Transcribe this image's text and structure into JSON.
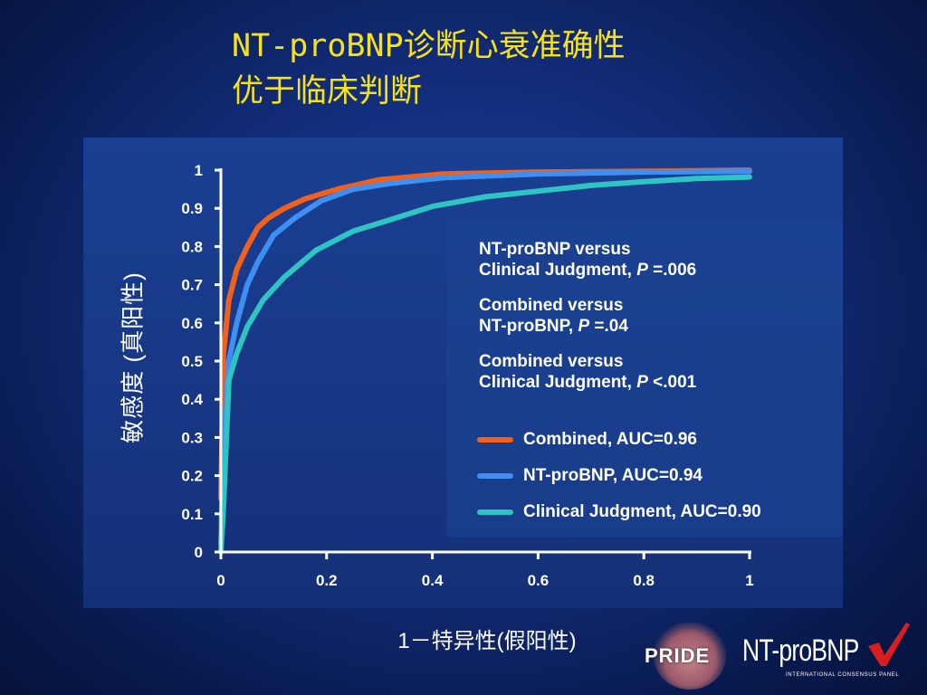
{
  "title": {
    "line1": "NT-proBNP诊断心衰准确性",
    "line2": "优于临床判断"
  },
  "annotations": [
    {
      "line1": "NT-proBNP versus",
      "line2_pre": "Clinical Judgment, ",
      "p": "P",
      "line2_post": " =.006"
    },
    {
      "line1": "Combined versus",
      "line2_pre": "NT-proBNP, ",
      "p": "P",
      "line2_post": " =.04"
    },
    {
      "line1": "Combined versus",
      "line2_pre": "Clinical Judgment, ",
      "p": "P",
      "line2_post": " <.001"
    }
  ],
  "logos": {
    "pride": "PRIDE",
    "ntprobnp": "NT-proBNP",
    "subtitle": "INTERNATIONAL CONSENSUS PANEL"
  },
  "colors": {
    "title": "#f5e11c",
    "combined": "#f2601c",
    "ntprobnp": "#3d8ff2",
    "clinical": "#2ec4c4",
    "check": "#d81e1e"
  },
  "chart_data": {
    "type": "line",
    "title": "",
    "xlabel": "1－特异性(假阳性)",
    "ylabel": "敏感度 (真阳性)",
    "xlim": [
      0,
      1
    ],
    "ylim": [
      0,
      1
    ],
    "x_ticks": [
      "0",
      "0.2",
      "0.4",
      "0.6",
      "0.8",
      "1"
    ],
    "y_ticks": [
      "0",
      "0.1",
      "0.2",
      "0.3",
      "0.4",
      "0.5",
      "0.6",
      "0.7",
      "0.8",
      "0.9",
      "1"
    ],
    "grid": false,
    "legend_position": "right",
    "series": [
      {
        "name": "Combined, AUC=0.96",
        "color": "#f2601c",
        "points": [
          [
            0,
            0.14
          ],
          [
            0.005,
            0.52
          ],
          [
            0.015,
            0.66
          ],
          [
            0.03,
            0.74
          ],
          [
            0.05,
            0.8
          ],
          [
            0.07,
            0.85
          ],
          [
            0.09,
            0.875
          ],
          [
            0.12,
            0.9
          ],
          [
            0.16,
            0.925
          ],
          [
            0.22,
            0.95
          ],
          [
            0.3,
            0.975
          ],
          [
            0.42,
            0.99
          ],
          [
            0.6,
            0.995
          ],
          [
            0.8,
            0.997
          ],
          [
            1,
            1
          ]
        ]
      },
      {
        "name": "NT-proBNP, AUC=0.94",
        "color": "#3d8ff2",
        "points": [
          [
            0,
            0.02
          ],
          [
            0.005,
            0.28
          ],
          [
            0.015,
            0.5
          ],
          [
            0.03,
            0.6
          ],
          [
            0.05,
            0.7
          ],
          [
            0.07,
            0.76
          ],
          [
            0.1,
            0.83
          ],
          [
            0.14,
            0.875
          ],
          [
            0.19,
            0.92
          ],
          [
            0.25,
            0.95
          ],
          [
            0.32,
            0.965
          ],
          [
            0.42,
            0.98
          ],
          [
            0.6,
            0.99
          ],
          [
            0.8,
            0.995
          ],
          [
            1,
            0.997
          ]
        ]
      },
      {
        "name": "Clinical Judgment, AUC=0.90",
        "color": "#2ec4c4",
        "points": [
          [
            0,
            0.0
          ],
          [
            0.005,
            0.12
          ],
          [
            0.015,
            0.45
          ],
          [
            0.03,
            0.52
          ],
          [
            0.05,
            0.59
          ],
          [
            0.08,
            0.66
          ],
          [
            0.12,
            0.72
          ],
          [
            0.18,
            0.79
          ],
          [
            0.25,
            0.84
          ],
          [
            0.32,
            0.87
          ],
          [
            0.4,
            0.905
          ],
          [
            0.5,
            0.93
          ],
          [
            0.6,
            0.945
          ],
          [
            0.7,
            0.96
          ],
          [
            0.8,
            0.97
          ],
          [
            0.9,
            0.978
          ],
          [
            1,
            0.982
          ]
        ]
      }
    ]
  }
}
